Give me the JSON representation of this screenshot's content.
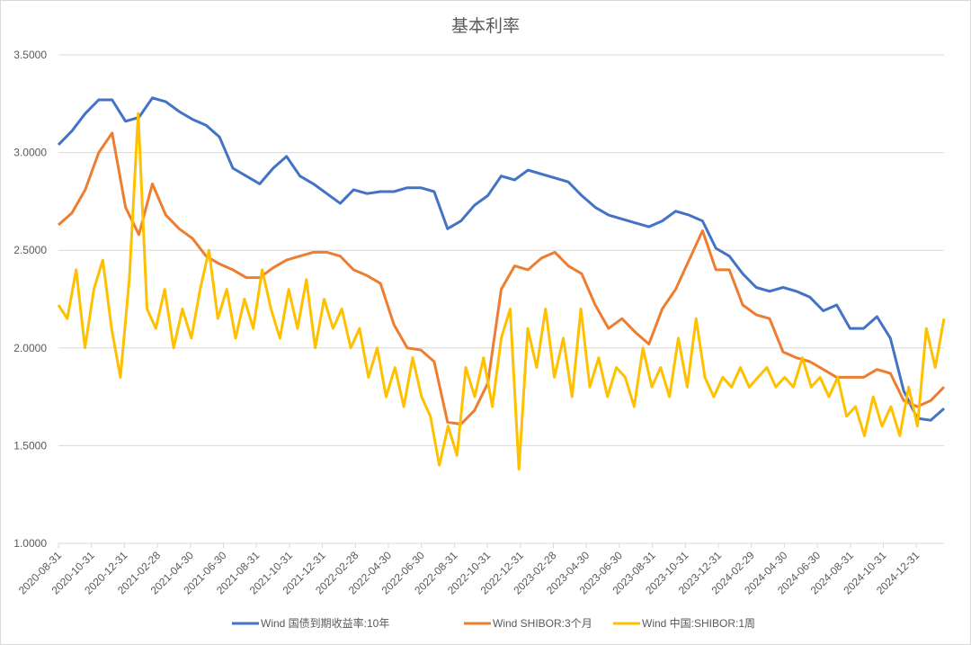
{
  "chart_data": {
    "type": "line",
    "title": "基本利率",
    "xlabel": "",
    "ylabel": "",
    "ylim": [
      1.0,
      3.5
    ],
    "yticks": [
      "1.0000",
      "1.5000",
      "2.0000",
      "2.5000",
      "3.0000",
      "3.5000"
    ],
    "ytick_values": [
      1.0,
      1.5,
      2.0,
      2.5,
      3.0,
      3.5
    ],
    "grid": true,
    "legend_position": "bottom",
    "x_start": "2020-08-31",
    "x_end": "2025-02-28",
    "xticks": [
      "2020-08-31",
      "2020-10-31",
      "2020-12-31",
      "2021-02-28",
      "2021-04-30",
      "2021-06-30",
      "2021-08-31",
      "2021-10-31",
      "2021-12-31",
      "2022-02-28",
      "2022-04-30",
      "2022-06-30",
      "2022-08-31",
      "2022-10-31",
      "2022-12-31",
      "2023-02-28",
      "2023-04-30",
      "2023-06-30",
      "2023-08-31",
      "2023-10-31",
      "2023-12-31",
      "2024-02-29",
      "2024-04-30",
      "2024-06-30",
      "2024-08-31",
      "2024-10-31",
      "2024-12-31"
    ],
    "series": [
      {
        "name": "Wind 国债到期收益率:10年",
        "color": "#4472C4",
        "values": [
          3.04,
          3.11,
          3.2,
          3.27,
          3.27,
          3.16,
          3.18,
          3.28,
          3.26,
          3.21,
          3.17,
          3.14,
          3.08,
          2.92,
          2.88,
          2.84,
          2.92,
          2.98,
          2.88,
          2.84,
          2.79,
          2.74,
          2.81,
          2.79,
          2.8,
          2.8,
          2.82,
          2.82,
          2.8,
          2.61,
          2.65,
          2.73,
          2.78,
          2.88,
          2.86,
          2.91,
          2.89,
          2.87,
          2.85,
          2.78,
          2.72,
          2.68,
          2.66,
          2.64,
          2.62,
          2.65,
          2.7,
          2.68,
          2.65,
          2.51,
          2.47,
          2.38,
          2.31,
          2.29,
          2.31,
          2.29,
          2.26,
          2.19,
          2.22,
          2.1,
          2.1,
          2.16,
          2.05,
          1.78,
          1.64,
          1.63,
          1.69
        ]
      },
      {
        "name": "Wind SHIBOR:3个月",
        "color": "#ED7D31",
        "values": [
          2.63,
          2.69,
          2.81,
          3.0,
          3.1,
          2.72,
          2.58,
          2.84,
          2.68,
          2.61,
          2.56,
          2.47,
          2.43,
          2.4,
          2.36,
          2.36,
          2.41,
          2.45,
          2.47,
          2.49,
          2.49,
          2.47,
          2.4,
          2.37,
          2.33,
          2.12,
          2.0,
          1.99,
          1.93,
          1.62,
          1.61,
          1.68,
          1.82,
          2.3,
          2.42,
          2.4,
          2.46,
          2.49,
          2.42,
          2.38,
          2.22,
          2.1,
          2.15,
          2.08,
          2.02,
          2.2,
          2.3,
          2.45,
          2.6,
          2.4,
          2.4,
          2.22,
          2.17,
          2.15,
          1.98,
          1.95,
          1.93,
          1.89,
          1.85,
          1.85,
          1.85,
          1.89,
          1.87,
          1.73,
          1.7,
          1.73,
          1.8
        ]
      },
      {
        "name": "Wind 中国:SHIBOR:1周",
        "color": "#FFC000",
        "values": [
          2.22,
          2.15,
          2.4,
          2.0,
          2.3,
          2.45,
          2.1,
          1.85,
          2.35,
          3.2,
          2.2,
          2.1,
          2.3,
          2.0,
          2.2,
          2.05,
          2.3,
          2.5,
          2.15,
          2.3,
          2.05,
          2.25,
          2.1,
          2.4,
          2.2,
          2.05,
          2.3,
          2.1,
          2.35,
          2.0,
          2.25,
          2.1,
          2.2,
          2.0,
          2.1,
          1.85,
          2.0,
          1.75,
          1.9,
          1.7,
          1.95,
          1.75,
          1.65,
          1.4,
          1.6,
          1.45,
          1.9,
          1.75,
          1.95,
          1.7,
          2.05,
          2.2,
          1.38,
          2.1,
          1.9,
          2.2,
          1.85,
          2.05,
          1.75,
          2.2,
          1.8,
          1.95,
          1.75,
          1.9,
          1.85,
          1.7,
          2.0,
          1.8,
          1.9,
          1.75,
          2.05,
          1.8,
          2.15,
          1.85,
          1.75,
          1.85,
          1.8,
          1.9,
          1.8,
          1.85,
          1.9,
          1.8,
          1.85,
          1.8,
          1.95,
          1.8,
          1.85,
          1.75,
          1.85,
          1.65,
          1.7,
          1.55,
          1.75,
          1.6,
          1.7,
          1.55,
          1.8,
          1.6,
          2.1,
          1.9,
          2.15
        ]
      }
    ]
  }
}
